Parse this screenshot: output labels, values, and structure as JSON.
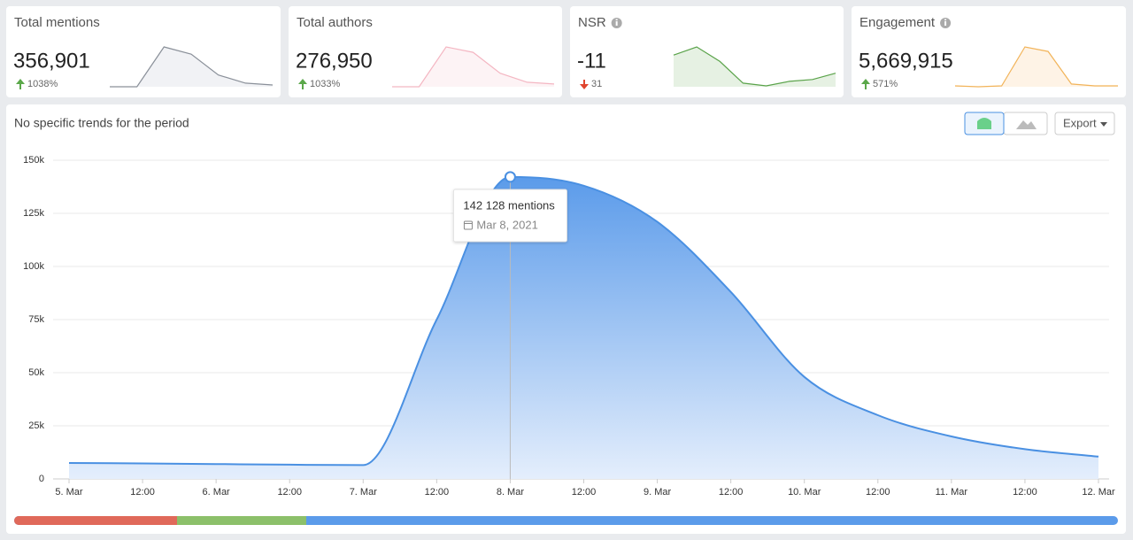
{
  "cards": [
    {
      "title": "Total mentions",
      "value": "356,901",
      "change": "1038%",
      "trend": "up",
      "info": false,
      "color": "#8a9099",
      "fill": "#f1f2f5",
      "sparkline": [
        0,
        0,
        44,
        36,
        13,
        4,
        2
      ]
    },
    {
      "title": "Total authors",
      "value": "276,950",
      "change": "1033%",
      "trend": "up",
      "info": false,
      "color": "#f4b6c2",
      "fill": "#fdf3f5",
      "sparkline": [
        0,
        0,
        44,
        38,
        15,
        5,
        3
      ]
    },
    {
      "title": "NSR",
      "value": "-11",
      "change": "31",
      "trend": "down",
      "info": true,
      "color": "#5aa34a",
      "fill": "#e6f1e3",
      "sparkline": [
        35,
        44,
        28,
        4,
        1,
        6,
        8,
        15
      ]
    },
    {
      "title": "Engagement",
      "value": "5,669,915",
      "change": "571%",
      "trend": "up",
      "info": true,
      "color": "#f2b45a",
      "fill": "#fef3e6",
      "sparkline": [
        1,
        0,
        1,
        44,
        39,
        3,
        1,
        1
      ]
    }
  ],
  "chart_data": {
    "type": "area",
    "title": "No specific trends for the period",
    "export": "Export",
    "categories": [
      "5. Mar",
      "12:00",
      "6. Mar",
      "12:00",
      "7. Mar",
      "12:00",
      "8. Mar",
      "12:00",
      "9. Mar",
      "12:00",
      "10. Mar",
      "12:00",
      "11. Mar",
      "12:00",
      "12. Mar"
    ],
    "values": [
      7500,
      7300,
      7000,
      6700,
      6500,
      75000,
      142128,
      138000,
      121000,
      88000,
      48000,
      30000,
      20000,
      14000,
      10500
    ],
    "color": "#4a90e2",
    "ylim": [
      0,
      150000
    ],
    "yticks": [
      0,
      {
        "value": 25000,
        "label": "25k"
      },
      {
        "value": 50000,
        "label": "50k"
      },
      {
        "value": 75000,
        "label": "75k"
      },
      {
        "value": 100000,
        "label": "100k"
      },
      {
        "value": 125000,
        "label": "125k"
      },
      {
        "value": 150000,
        "label": "150k"
      }
    ],
    "grid": true,
    "tooltip": {
      "index": 6,
      "label": "142 128 mentions",
      "date": "Mar 8, 2021"
    }
  }
}
